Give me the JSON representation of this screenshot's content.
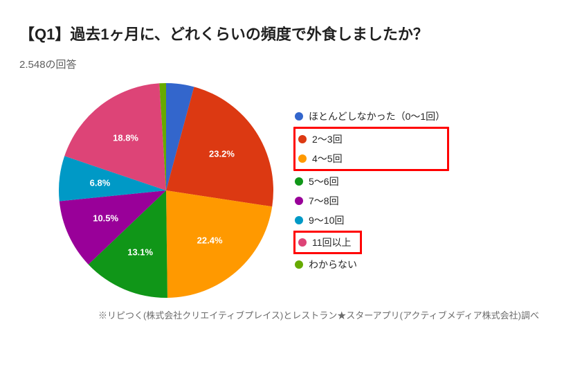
{
  "title": "【Q1】過去1ヶ月に、どれくらいの頻度で外食しましたか？",
  "response_count": "2.548の回答",
  "chart": {
    "type": "pie",
    "radius": 155,
    "background_color": "#ffffff",
    "label_fontsize": 13,
    "label_color": "#ffffff",
    "slices": [
      {
        "label": "ほとんどしなかった（0～1回）",
        "value": 4.2,
        "color": "#3366cc",
        "show_label": false
      },
      {
        "label": "2～3回",
        "value": 23.2,
        "color": "#dc3912",
        "show_label": true,
        "display": "23.2%"
      },
      {
        "label": "4～5回",
        "value": 22.4,
        "color": "#ff9900",
        "show_label": true,
        "display": "22.4%"
      },
      {
        "label": "5～6回",
        "value": 13.1,
        "color": "#109618",
        "show_label": true,
        "display": "13.1%"
      },
      {
        "label": "7～8回",
        "value": 10.5,
        "color": "#990099",
        "show_label": true,
        "display": "10.5%"
      },
      {
        "label": "9～10回",
        "value": 6.8,
        "color": "#0099c6",
        "show_label": true,
        "display": "6.8%"
      },
      {
        "label": "11回以上",
        "value": 18.8,
        "color": "#dd4477",
        "show_label": true,
        "display": "18.8%"
      },
      {
        "label": "わからない",
        "value": 1.0,
        "color": "#66aa00",
        "show_label": false
      }
    ],
    "legend": {
      "bullet_size": 12,
      "fontsize": 14,
      "highlight_color": "#ff0000",
      "highlight_groups": [
        [
          1,
          2
        ],
        [
          6
        ]
      ]
    }
  },
  "footnote": "※リピつく(株式会社クリエイティブプレイス)とレストラン★スターアプリ(アクティブメディア株式会社)調べ"
}
